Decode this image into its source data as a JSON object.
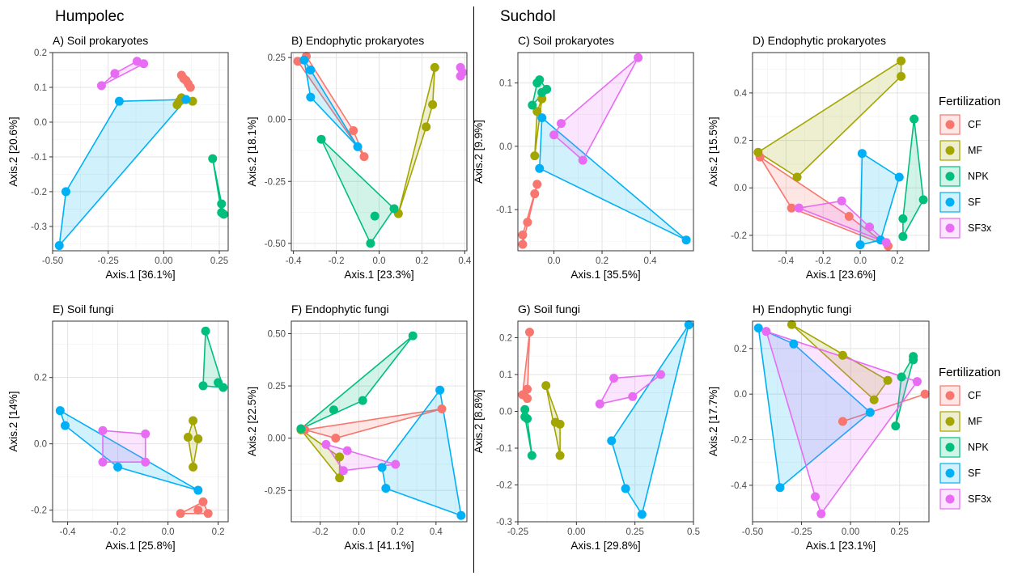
{
  "sites": [
    {
      "name": "Humpolec"
    },
    {
      "name": "Suchdol"
    }
  ],
  "legend": {
    "title": "Fertilization",
    "entries": [
      {
        "label": "CF",
        "color": "#F8766D"
      },
      {
        "label": "MF",
        "color": "#A3A500"
      },
      {
        "label": "NPK",
        "color": "#00BF7D"
      },
      {
        "label": "SF",
        "color": "#00B0F6"
      },
      {
        "label": "SF3x",
        "color": "#E76BF3"
      }
    ]
  },
  "chart_data": [
    {
      "type": "scatter",
      "title": "A) Soil prokaryotes",
      "xlabel": "Axis.1   [36.1%]",
      "ylabel": "Axis.2   [20.6%]",
      "xlim": [
        -0.5,
        0.29
      ],
      "ylim": [
        -0.37,
        0.2
      ],
      "xticks": [
        -0.5,
        -0.25,
        0.0,
        0.25
      ],
      "xtick_labels": [
        "-0.50",
        "-0.25",
        "0.00",
        "0.25"
      ],
      "yticks": [
        -0.3,
        -0.2,
        -0.1,
        0.0,
        0.1,
        0.2
      ],
      "ytick_labels": [
        "-0.3",
        "-0.2",
        "-0.1",
        "0.0",
        "0.1",
        "0.2"
      ],
      "series": [
        {
          "name": "CF",
          "points": [
            [
              0.08,
              0.135
            ],
            [
              0.09,
              0.125
            ],
            [
              0.1,
              0.12
            ],
            [
              0.11,
              0.11
            ],
            [
              0.12,
              0.1
            ]
          ]
        },
        {
          "name": "MF",
          "points": [
            [
              0.06,
              0.05
            ],
            [
              0.07,
              0.06
            ],
            [
              0.08,
              0.07
            ],
            [
              0.1,
              0.065
            ],
            [
              0.13,
              0.06
            ]
          ]
        },
        {
          "name": "NPK",
          "points": [
            [
              0.22,
              -0.105
            ],
            [
              0.26,
              -0.235
            ],
            [
              0.26,
              -0.26
            ],
            [
              0.27,
              -0.265
            ]
          ]
        },
        {
          "name": "SF",
          "points": [
            [
              -0.2,
              0.06
            ],
            [
              0.1,
              0.065
            ],
            [
              -0.44,
              -0.2
            ],
            [
              -0.47,
              -0.355
            ]
          ]
        },
        {
          "name": "SF3x",
          "points": [
            [
              -0.12,
              0.175
            ],
            [
              -0.09,
              0.168
            ],
            [
              -0.22,
              0.14
            ],
            [
              -0.28,
              0.105
            ]
          ]
        }
      ]
    },
    {
      "type": "scatter",
      "title": "B) Endophytic prokaryotes",
      "xlabel": "Axis.1   [23.3%]",
      "ylabel": "Axis.2   [18.1%]",
      "xlim": [
        -0.41,
        0.41
      ],
      "ylim": [
        -0.53,
        0.27
      ],
      "xticks": [
        -0.4,
        -0.2,
        0.0,
        0.2,
        0.4
      ],
      "xtick_labels": [
        "-0.4",
        "-0.2",
        "0.0",
        "0.2",
        "0.4"
      ],
      "yticks": [
        -0.5,
        -0.25,
        0.0,
        0.25
      ],
      "ytick_labels": [
        "-0.50",
        "-0.25",
        "0.00",
        "0.25"
      ],
      "series": [
        {
          "name": "CF",
          "points": [
            [
              -0.38,
              0.235
            ],
            [
              -0.34,
              0.255
            ],
            [
              -0.12,
              -0.045
            ],
            [
              -0.07,
              -0.15
            ]
          ]
        },
        {
          "name": "MF",
          "points": [
            [
              0.26,
              0.21
            ],
            [
              0.25,
              0.06
            ],
            [
              0.22,
              -0.03
            ],
            [
              0.09,
              -0.38
            ]
          ]
        },
        {
          "name": "NPK",
          "points": [
            [
              -0.27,
              -0.08
            ],
            [
              -0.02,
              -0.39
            ],
            [
              0.07,
              -0.36
            ],
            [
              -0.04,
              -0.5
            ]
          ]
        },
        {
          "name": "SF",
          "points": [
            [
              -0.35,
              0.24
            ],
            [
              -0.32,
              0.2
            ],
            [
              -0.32,
              0.09
            ],
            [
              -0.1,
              -0.11
            ]
          ]
        },
        {
          "name": "SF3x",
          "points": [
            [
              0.38,
              0.21
            ],
            [
              0.39,
              0.19
            ],
            [
              0.38,
              0.175
            ]
          ]
        }
      ]
    },
    {
      "type": "scatter",
      "title": "C) Soil prokaryotes",
      "xlabel": "Axis.1   [35.5%]",
      "ylabel": "Axis.2   [9.9%]",
      "xlim": [
        -0.15,
        0.58
      ],
      "ylim": [
        -0.165,
        0.148
      ],
      "xticks": [
        0.0,
        0.2,
        0.4
      ],
      "xtick_labels": [
        "0.0",
        "0.2",
        "0.4"
      ],
      "yticks": [
        -0.1,
        0.0,
        0.1
      ],
      "ytick_labels": [
        "-0.1",
        "0.0",
        "0.1"
      ],
      "series": [
        {
          "name": "CF",
          "points": [
            [
              -0.07,
              -0.06
            ],
            [
              -0.08,
              -0.075
            ],
            [
              -0.11,
              -0.12
            ],
            [
              -0.13,
              -0.14
            ],
            [
              -0.13,
              -0.155
            ]
          ]
        },
        {
          "name": "MF",
          "points": [
            [
              -0.05,
              0.075
            ],
            [
              -0.07,
              0.055
            ],
            [
              -0.08,
              -0.015
            ]
          ]
        },
        {
          "name": "NPK",
          "points": [
            [
              -0.07,
              0.1
            ],
            [
              -0.06,
              0.105
            ],
            [
              -0.03,
              0.09
            ],
            [
              -0.09,
              0.065
            ],
            [
              -0.05,
              0.085
            ]
          ]
        },
        {
          "name": "SF",
          "points": [
            [
              -0.05,
              0.045
            ],
            [
              -0.06,
              -0.035
            ],
            [
              0.55,
              -0.148
            ]
          ]
        },
        {
          "name": "SF3x",
          "points": [
            [
              0.35,
              0.14
            ],
            [
              0.03,
              0.036
            ],
            [
              0.0,
              0.018
            ],
            [
              0.12,
              -0.022
            ]
          ]
        }
      ]
    },
    {
      "type": "scatter",
      "title": "D) Endophytic prokaryotes",
      "xlabel": "Axis.1   [23.6%]",
      "ylabel": "Axis.2   [15.5%]",
      "xlim": [
        -0.58,
        0.37
      ],
      "ylim": [
        -0.265,
        0.57
      ],
      "xticks": [
        -0.4,
        -0.2,
        0.0,
        0.2
      ],
      "xtick_labels": [
        "-0.4",
        "-0.2",
        "0.0",
        "0.2"
      ],
      "yticks": [
        -0.2,
        0.0,
        0.2,
        0.4
      ],
      "ytick_labels": [
        "-0.2",
        "0.0",
        "0.2",
        "0.4"
      ],
      "series": [
        {
          "name": "CF",
          "points": [
            [
              -0.54,
              0.13
            ],
            [
              -0.37,
              -0.085
            ],
            [
              -0.06,
              -0.12
            ],
            [
              0.15,
              -0.245
            ]
          ]
        },
        {
          "name": "MF",
          "points": [
            [
              0.22,
              0.535
            ],
            [
              0.22,
              0.47
            ],
            [
              -0.55,
              0.15
            ],
            [
              -0.34,
              0.045
            ]
          ]
        },
        {
          "name": "NPK",
          "points": [
            [
              0.29,
              0.29
            ],
            [
              0.34,
              -0.05
            ],
            [
              0.23,
              -0.13
            ],
            [
              0.23,
              -0.205
            ]
          ]
        },
        {
          "name": "SF",
          "points": [
            [
              0.01,
              0.145
            ],
            [
              0.21,
              0.045
            ],
            [
              0.0,
              -0.24
            ],
            [
              0.11,
              -0.22
            ]
          ]
        },
        {
          "name": "SF3x",
          "points": [
            [
              -0.1,
              -0.055
            ],
            [
              -0.33,
              -0.085
            ],
            [
              0.05,
              -0.165
            ],
            [
              0.14,
              -0.23
            ]
          ]
        }
      ]
    },
    {
      "type": "scatter",
      "title": "E) Soil fungi",
      "xlabel": "Axis.1   [25.8%]",
      "ylabel": "Axis.2   [14%]",
      "xlim": [
        -0.46,
        0.24
      ],
      "ylim": [
        -0.235,
        0.37
      ],
      "xticks": [
        -0.4,
        -0.2,
        0.0,
        0.2
      ],
      "xtick_labels": [
        "-0.4",
        "-0.2",
        "0.0",
        "0.2"
      ],
      "yticks": [
        -0.2,
        0.0,
        0.2
      ],
      "ytick_labels": [
        "-0.2",
        "0.0",
        "0.2"
      ],
      "series": [
        {
          "name": "CF",
          "points": [
            [
              0.12,
              -0.2
            ],
            [
              0.14,
              -0.175
            ],
            [
              0.05,
              -0.21
            ],
            [
              0.16,
              -0.21
            ]
          ]
        },
        {
          "name": "MF",
          "points": [
            [
              0.1,
              0.07
            ],
            [
              0.08,
              0.02
            ],
            [
              0.12,
              0.015
            ],
            [
              0.1,
              -0.07
            ]
          ]
        },
        {
          "name": "NPK",
          "points": [
            [
              0.15,
              0.34
            ],
            [
              0.2,
              0.185
            ],
            [
              0.22,
              0.17
            ],
            [
              0.14,
              0.175
            ]
          ]
        },
        {
          "name": "SF",
          "points": [
            [
              -0.43,
              0.1
            ],
            [
              -0.41,
              0.055
            ],
            [
              -0.2,
              -0.07
            ],
            [
              0.12,
              -0.14
            ]
          ]
        },
        {
          "name": "SF3x",
          "points": [
            [
              -0.26,
              0.04
            ],
            [
              -0.09,
              0.03
            ],
            [
              -0.26,
              -0.055
            ],
            [
              -0.09,
              -0.055
            ]
          ]
        }
      ]
    },
    {
      "type": "scatter",
      "title": "F) Endophytic fungi",
      "xlabel": "Axis.1   [41.1%]",
      "ylabel": "Axis.2   [22.5%]",
      "xlim": [
        -0.35,
        0.56
      ],
      "ylim": [
        -0.4,
        0.56
      ],
      "xticks": [
        -0.2,
        0.0,
        0.2,
        0.4
      ],
      "xtick_labels": [
        "-0.2",
        "0.0",
        "0.2",
        "0.4"
      ],
      "yticks": [
        -0.25,
        0.0,
        0.25,
        0.5
      ],
      "ytick_labels": [
        "-0.25",
        "0.00",
        "0.25",
        "0.50"
      ],
      "series": [
        {
          "name": "CF",
          "points": [
            [
              -0.28,
              0.04
            ],
            [
              -0.12,
              0.0
            ],
            [
              0.43,
              0.14
            ]
          ]
        },
        {
          "name": "MF",
          "points": [
            [
              -0.3,
              0.04
            ],
            [
              -0.1,
              -0.09
            ],
            [
              -0.1,
              -0.19
            ]
          ]
        },
        {
          "name": "NPK",
          "points": [
            [
              0.28,
              0.49
            ],
            [
              0.02,
              0.18
            ],
            [
              -0.13,
              0.135
            ],
            [
              -0.3,
              0.045
            ]
          ]
        },
        {
          "name": "SF",
          "points": [
            [
              0.42,
              0.23
            ],
            [
              0.53,
              -0.37
            ],
            [
              0.14,
              -0.24
            ],
            [
              0.12,
              -0.14
            ]
          ]
        },
        {
          "name": "SF3x",
          "points": [
            [
              -0.17,
              -0.03
            ],
            [
              -0.06,
              -0.06
            ],
            [
              -0.08,
              -0.155
            ],
            [
              0.19,
              -0.125
            ]
          ]
        }
      ]
    },
    {
      "type": "scatter",
      "title": "G) Soil fungi",
      "xlabel": "Axis.1   [29.8%]",
      "ylabel": "Axis.2   [8.8%]",
      "xlim": [
        -0.25,
        0.5
      ],
      "ylim": [
        -0.3,
        0.245
      ],
      "xticks": [
        -0.25,
        0.0,
        0.25,
        0.5
      ],
      "xtick_labels": [
        "-0.25",
        "0.00",
        "0.25",
        "0.5"
      ],
      "yticks": [
        -0.3,
        -0.2,
        -0.1,
        0.0,
        0.1,
        0.2
      ],
      "ytick_labels": [
        "-0.3",
        "-0.2",
        "-0.1",
        "0.0",
        "0.1",
        "0.2"
      ],
      "series": [
        {
          "name": "CF",
          "points": [
            [
              -0.2,
              0.215
            ],
            [
              -0.21,
              0.06
            ],
            [
              -0.23,
              0.045
            ],
            [
              -0.21,
              0.035
            ]
          ]
        },
        {
          "name": "MF",
          "points": [
            [
              -0.13,
              0.07
            ],
            [
              -0.09,
              -0.03
            ],
            [
              -0.07,
              -0.035
            ],
            [
              -0.07,
              -0.12
            ]
          ]
        },
        {
          "name": "NPK",
          "points": [
            [
              -0.22,
              0.005
            ],
            [
              -0.22,
              -0.015
            ],
            [
              -0.21,
              -0.02
            ],
            [
              -0.19,
              -0.12
            ]
          ]
        },
        {
          "name": "SF",
          "points": [
            [
              0.48,
              0.235
            ],
            [
              0.15,
              -0.08
            ],
            [
              0.21,
              -0.21
            ],
            [
              0.28,
              -0.28
            ]
          ]
        },
        {
          "name": "SF3x",
          "points": [
            [
              0.16,
              0.09
            ],
            [
              0.36,
              0.1
            ],
            [
              0.24,
              0.04
            ],
            [
              0.1,
              0.02
            ]
          ]
        }
      ]
    },
    {
      "type": "scatter",
      "title": "H) Endophytic fungi",
      "xlabel": "Axis.1   [23.1%]",
      "ylabel": "Axis.2   [17.7%]",
      "xlim": [
        -0.5,
        0.4
      ],
      "ylim": [
        -0.56,
        0.32
      ],
      "xticks": [
        -0.5,
        -0.25,
        0.0,
        0.25
      ],
      "xtick_labels": [
        "-0.50",
        "-0.25",
        "0.00",
        "0.25"
      ],
      "yticks": [
        -0.4,
        -0.2,
        0.0,
        0.2
      ],
      "ytick_labels": [
        "-0.4",
        "-0.2",
        "0.0",
        "0.2"
      ],
      "series": [
        {
          "name": "CF",
          "points": [
            [
              0.38,
              0.0
            ],
            [
              -0.04,
              -0.12
            ]
          ]
        },
        {
          "name": "MF",
          "points": [
            [
              -0.3,
              0.305
            ],
            [
              -0.04,
              0.17
            ],
            [
              0.19,
              0.06
            ],
            [
              0.12,
              -0.025
            ]
          ]
        },
        {
          "name": "NPK",
          "points": [
            [
              0.32,
              0.165
            ],
            [
              0.32,
              0.15
            ],
            [
              0.26,
              0.075
            ],
            [
              0.23,
              -0.14
            ]
          ]
        },
        {
          "name": "SF",
          "points": [
            [
              -0.47,
              0.29
            ],
            [
              -0.29,
              0.22
            ],
            [
              0.1,
              -0.08
            ],
            [
              -0.36,
              -0.41
            ]
          ]
        },
        {
          "name": "SF3x",
          "points": [
            [
              -0.43,
              0.275
            ],
            [
              0.34,
              0.055
            ],
            [
              -0.18,
              -0.45
            ],
            [
              -0.15,
              -0.525
            ]
          ]
        }
      ]
    }
  ]
}
